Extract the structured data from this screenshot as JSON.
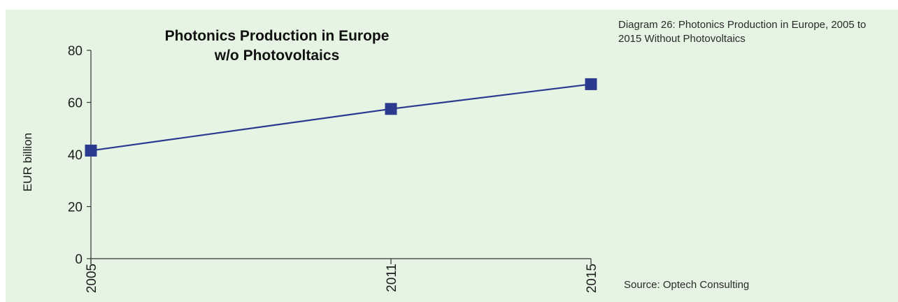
{
  "caption": "Diagram 26: Photonics Production in Europe, 2005 to 2015 Without Photovoltaics",
  "source": "Source: Optech Consulting",
  "colors": {
    "background": "#e6f4e4",
    "series": "#2b3a8f",
    "axis": "#333333"
  },
  "chart_data": {
    "type": "line",
    "title": [
      "Photonics Production in Europe",
      "w/o Photovoltaics"
    ],
    "xlabel": "",
    "ylabel": "EUR billion",
    "categories": [
      "2005",
      "2011",
      "2015"
    ],
    "x": [
      2005,
      2011,
      2015
    ],
    "yticks": [
      "0",
      "20",
      "40",
      "60",
      "80"
    ],
    "ylim": [
      0,
      80
    ],
    "grid": false,
    "legend": "none",
    "marker": "square",
    "series": [
      {
        "values": [
          41.5,
          57.5,
          67
        ]
      }
    ]
  }
}
